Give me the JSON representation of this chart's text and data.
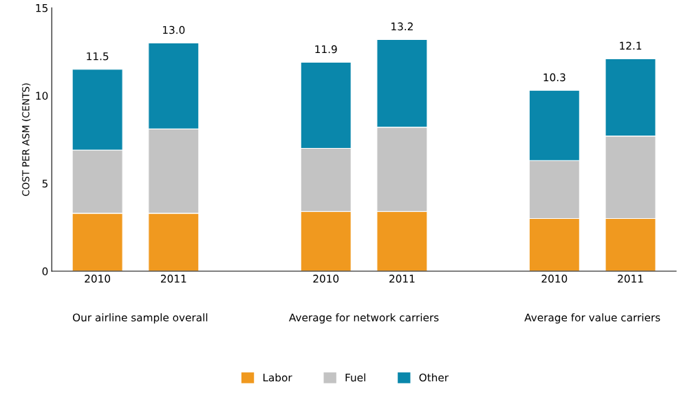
{
  "chart_data": {
    "type": "bar",
    "stacked": true,
    "ylabel": "COST PER ASM (CENTS)",
    "categories": [
      "2010",
      "2011",
      null,
      "2010",
      "2011",
      null,
      "2010",
      "2011"
    ],
    "series": [
      {
        "name": "Labor",
        "color": "#f0991f",
        "values": [
          3.3,
          3.3,
          null,
          3.4,
          3.4,
          null,
          3.0,
          3.0
        ]
      },
      {
        "name": "Fuel",
        "color": "#c3c3c3",
        "values": [
          3.6,
          4.8,
          null,
          3.6,
          4.8,
          null,
          3.3,
          4.7
        ]
      },
      {
        "name": "Other",
        "color": "#0a87ab",
        "values": [
          4.6,
          4.9,
          null,
          4.9,
          5.0,
          null,
          4.0,
          4.4
        ]
      }
    ],
    "totals": [
      "11.5",
      "13.0",
      null,
      "11.9",
      "13.2",
      null,
      "10.3",
      "12.1"
    ],
    "ylim": [
      0,
      15
    ],
    "yticks": [
      0,
      5,
      10,
      15
    ],
    "grid": false,
    "legend": "bottom",
    "annotations": [
      "Our airline sample overall",
      "Average for network carriers",
      "Average for value carriers"
    ]
  }
}
